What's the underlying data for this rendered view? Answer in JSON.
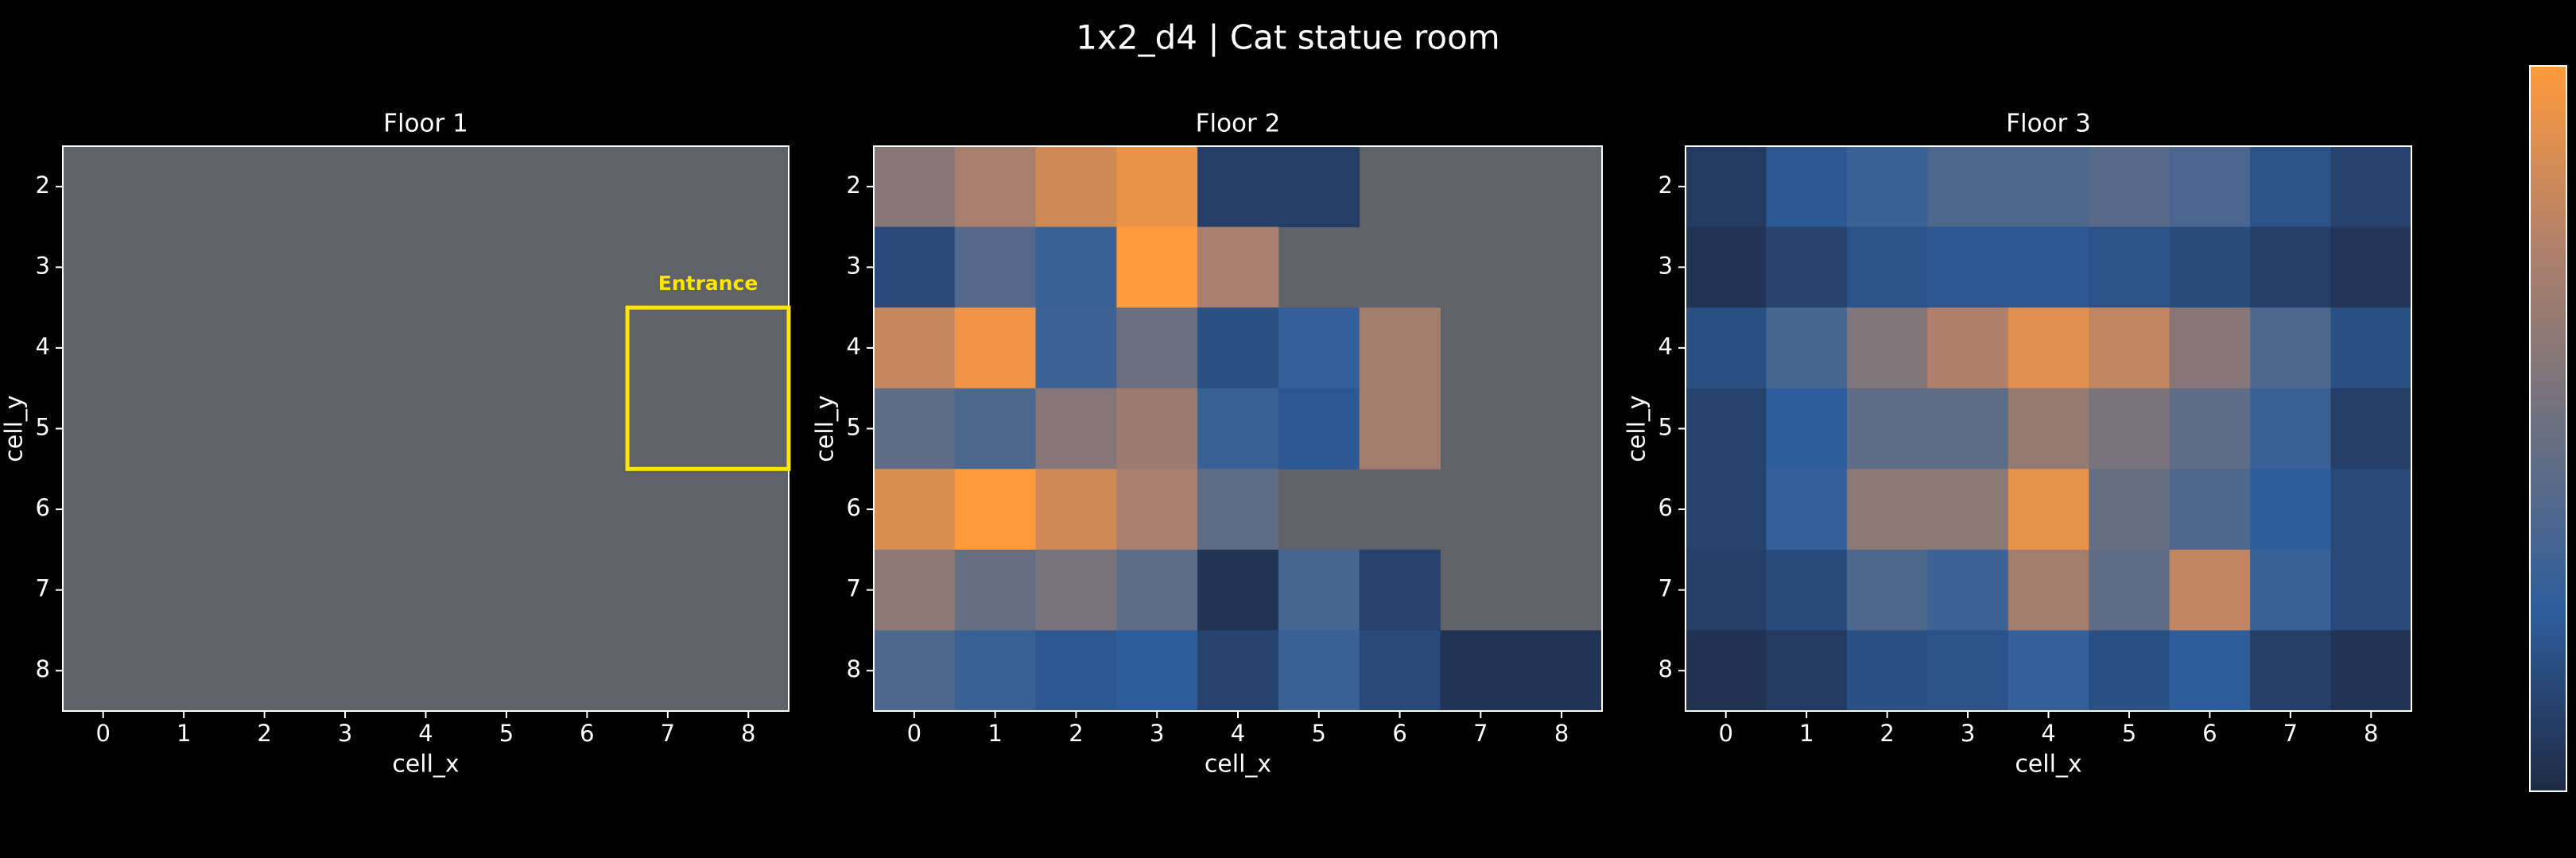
{
  "title": "1x2_d4 | Cat statue room",
  "colorbar": {
    "clim": [
      0,
      1
    ],
    "colormap": [
      "#1f2a44",
      "#2e5d9c",
      "#6b7080",
      "#b0806a",
      "#ff9a3c"
    ]
  },
  "chart_data": [
    {
      "type": "heatmap",
      "title": "Floor 1",
      "xlabel": "cell_x",
      "ylabel": "cell_y",
      "nan_color": "#5f6266",
      "x": [
        0,
        1,
        2,
        3,
        4,
        5,
        6,
        7,
        8
      ],
      "y": [
        2,
        3,
        4,
        5,
        6,
        7,
        8
      ],
      "xlim": [
        -0.5,
        8.5
      ],
      "ylim": [
        8.5,
        1.5
      ],
      "xticks": [
        0,
        1,
        2,
        3,
        4,
        5,
        6,
        7,
        8
      ],
      "yticks": [
        2,
        3,
        4,
        5,
        6,
        7,
        8
      ],
      "values": [
        [
          null,
          null,
          null,
          null,
          null,
          null,
          null,
          null,
          null
        ],
        [
          null,
          null,
          null,
          null,
          null,
          null,
          null,
          null,
          null
        ],
        [
          null,
          null,
          null,
          null,
          null,
          null,
          null,
          null,
          null
        ],
        [
          null,
          null,
          null,
          null,
          null,
          null,
          null,
          null,
          null
        ],
        [
          null,
          null,
          null,
          null,
          null,
          null,
          null,
          null,
          null
        ],
        [
          null,
          null,
          null,
          null,
          null,
          null,
          null,
          null,
          null
        ],
        [
          null,
          null,
          null,
          null,
          null,
          null,
          null,
          null,
          null
        ]
      ],
      "annotations": [
        {
          "text": "Entrance",
          "x0": 6.5,
          "x1": 8.5,
          "y0": 3.5,
          "y1": 5.5,
          "color": "#ffe600"
        }
      ]
    },
    {
      "type": "heatmap",
      "title": "Floor 2",
      "xlabel": "cell_x",
      "ylabel": "cell_y",
      "nan_color": "#5f6266",
      "x": [
        0,
        1,
        2,
        3,
        4,
        5,
        6,
        7,
        8
      ],
      "y": [
        2,
        3,
        4,
        5,
        6,
        7,
        8
      ],
      "xlim": [
        -0.5,
        8.5
      ],
      "ylim": [
        8.5,
        1.5
      ],
      "xticks": [
        0,
        1,
        2,
        3,
        4,
        5,
        6,
        7,
        8
      ],
      "yticks": [
        2,
        3,
        4,
        5,
        6,
        7,
        8
      ],
      "values": [
        [
          0.6,
          0.72,
          0.85,
          0.93,
          0.1,
          0.1,
          null,
          null,
          null
        ],
        [
          0.15,
          0.4,
          0.3,
          1.0,
          0.72,
          null,
          null,
          null,
          null
        ],
        [
          0.82,
          0.95,
          0.32,
          0.5,
          0.18,
          0.28,
          0.7,
          null,
          null
        ],
        [
          0.45,
          0.38,
          0.6,
          0.68,
          0.3,
          0.22,
          0.7,
          null,
          null
        ],
        [
          0.88,
          1.0,
          0.85,
          0.72,
          0.45,
          null,
          null,
          null,
          null
        ],
        [
          0.62,
          0.48,
          0.55,
          0.45,
          0.05,
          0.35,
          0.12,
          null,
          null
        ],
        [
          0.38,
          0.3,
          0.22,
          0.25,
          0.12,
          0.3,
          0.15,
          0.05,
          0.05
        ]
      ]
    },
    {
      "type": "heatmap",
      "title": "Floor 3",
      "xlabel": "cell_x",
      "ylabel": "cell_y",
      "nan_color": "#5f6266",
      "x": [
        0,
        1,
        2,
        3,
        4,
        5,
        6,
        7,
        8
      ],
      "y": [
        2,
        3,
        4,
        5,
        6,
        7,
        8
      ],
      "xlim": [
        -0.5,
        8.5
      ],
      "ylim": [
        8.5,
        1.5
      ],
      "xticks": [
        0,
        1,
        2,
        3,
        4,
        5,
        6,
        7,
        8
      ],
      "yticks": [
        2,
        3,
        4,
        5,
        6,
        7,
        8
      ],
      "values": [
        [
          0.08,
          0.22,
          0.3,
          0.38,
          0.38,
          0.42,
          0.36,
          0.2,
          0.12
        ],
        [
          0.05,
          0.12,
          0.2,
          0.22,
          0.22,
          0.2,
          0.16,
          0.1,
          0.06
        ],
        [
          0.18,
          0.35,
          0.58,
          0.75,
          0.9,
          0.8,
          0.6,
          0.38,
          0.18
        ],
        [
          0.12,
          0.25,
          0.45,
          0.45,
          0.65,
          0.55,
          0.45,
          0.3,
          0.1
        ],
        [
          0.12,
          0.28,
          0.62,
          0.62,
          0.92,
          0.48,
          0.38,
          0.25,
          0.15
        ],
        [
          0.1,
          0.16,
          0.38,
          0.32,
          0.7,
          0.45,
          0.8,
          0.3,
          0.15
        ],
        [
          0.04,
          0.08,
          0.18,
          0.2,
          0.28,
          0.18,
          0.25,
          0.1,
          0.05
        ]
      ]
    }
  ]
}
